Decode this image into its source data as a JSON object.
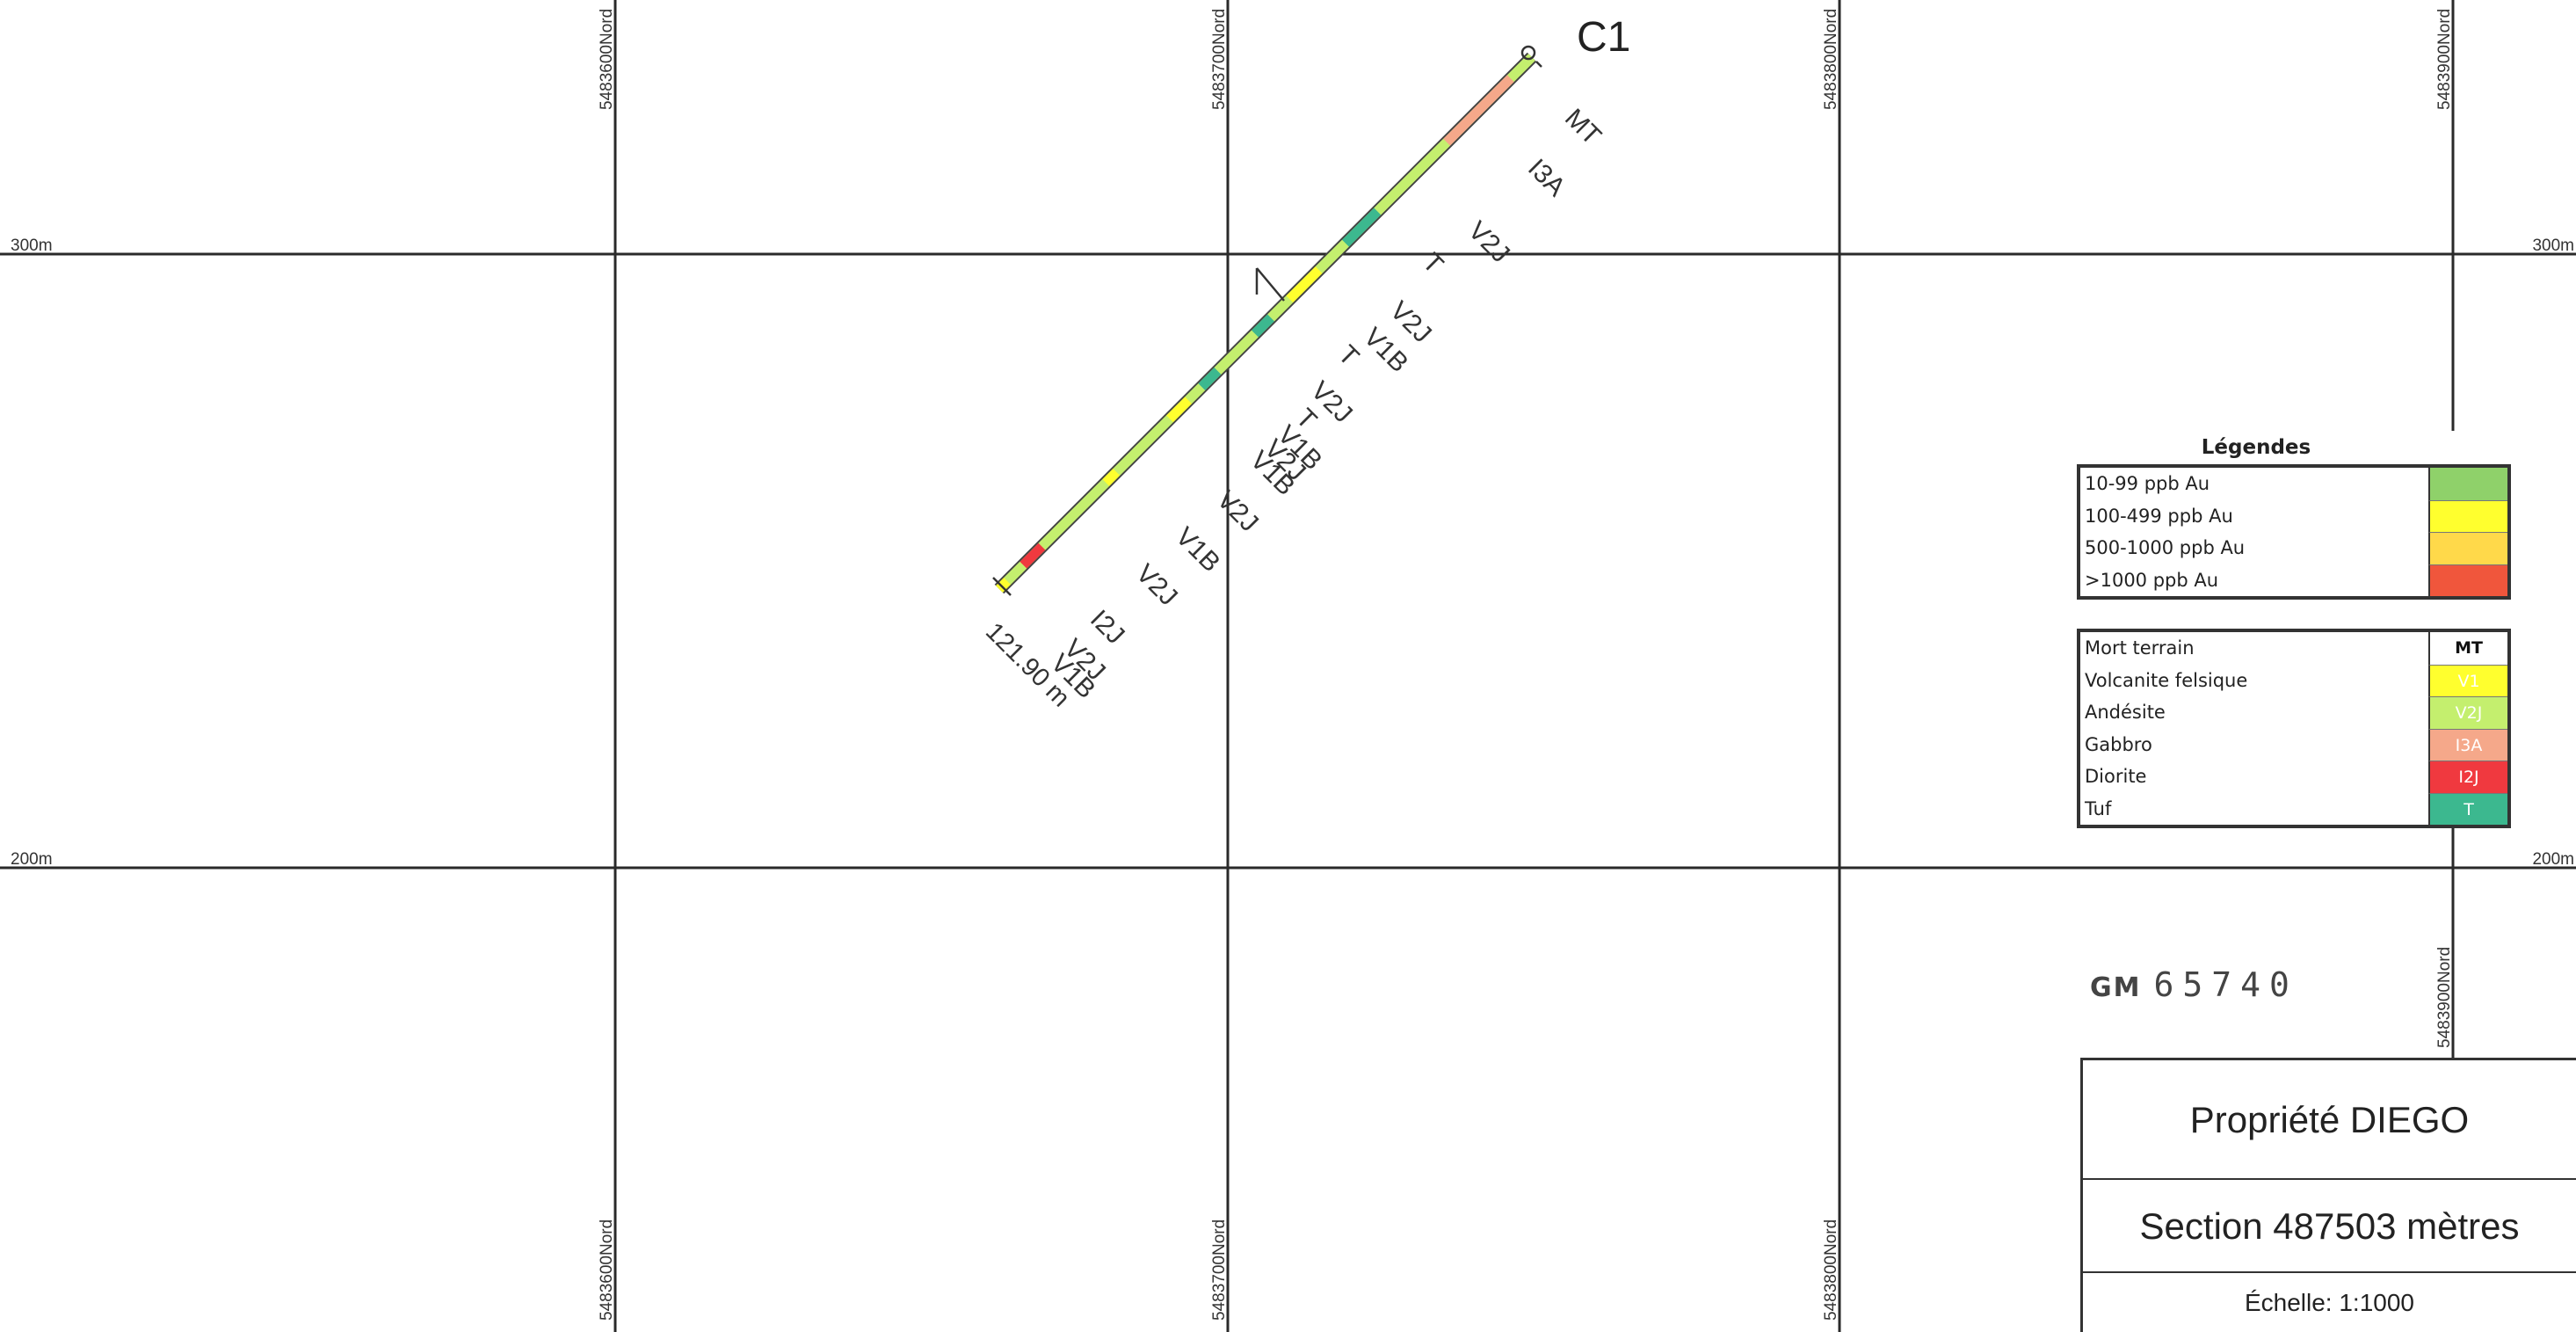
{
  "grid": {
    "northings": [
      {
        "top": "5483600Nord",
        "bottom": "5483600Nord"
      },
      {
        "top": "5483700Nord",
        "bottom": "5483700Nord"
      },
      {
        "top": "5483800Nord",
        "bottom": "5483800Nord"
      },
      {
        "top": "5483900Nord",
        "bottom": "5483900Nord"
      }
    ],
    "elevations": [
      {
        "left": "300m",
        "right": "300m"
      },
      {
        "left": "200m",
        "right": "200m"
      }
    ]
  },
  "drillhole": {
    "name": "C1",
    "end_depth_label": "121.90 m",
    "lithology_labels": [
      "MT",
      "I3A",
      "V2J",
      "T",
      "V2J",
      "V1B",
      "T",
      "V2J",
      "T",
      "V1B",
      "V2J",
      "V1B",
      "V2J",
      "V1B",
      "V2J",
      "I2J",
      "V2J",
      "V1B"
    ]
  },
  "legend": {
    "title": "Légendes",
    "gold": [
      {
        "label": "10-99 ppb Au",
        "color": "#8fd16a"
      },
      {
        "label": "100-499 ppb Au",
        "color": "#ffff2e"
      },
      {
        "label": "500-1000 ppb Au",
        "color": "#ffd94a"
      },
      {
        "label": ">1000 ppb Au",
        "color": "#f0563c"
      }
    ],
    "lithology": [
      {
        "label": "Mort terrain",
        "code": "MT",
        "color": "#ffffff"
      },
      {
        "label": "Volcanite felsique",
        "code": "V1",
        "color": "#ffff2e"
      },
      {
        "label": "Andésite",
        "code": "V2J",
        "color": "#c4ef6e"
      },
      {
        "label": "Gabbro",
        "code": "I3A",
        "color": "#f5a88a"
      },
      {
        "label": "Diorite",
        "code": "I2J",
        "color": "#f0393f"
      },
      {
        "label": "Tuf",
        "code": "T",
        "color": "#3cb88f"
      }
    ]
  },
  "stamp": {
    "prefix": "GM",
    "number": "65740"
  },
  "title_block": {
    "property": "Propriété DIEGO",
    "section": "Section 487503  mètres",
    "scale": "Échelle: 1:1000"
  }
}
